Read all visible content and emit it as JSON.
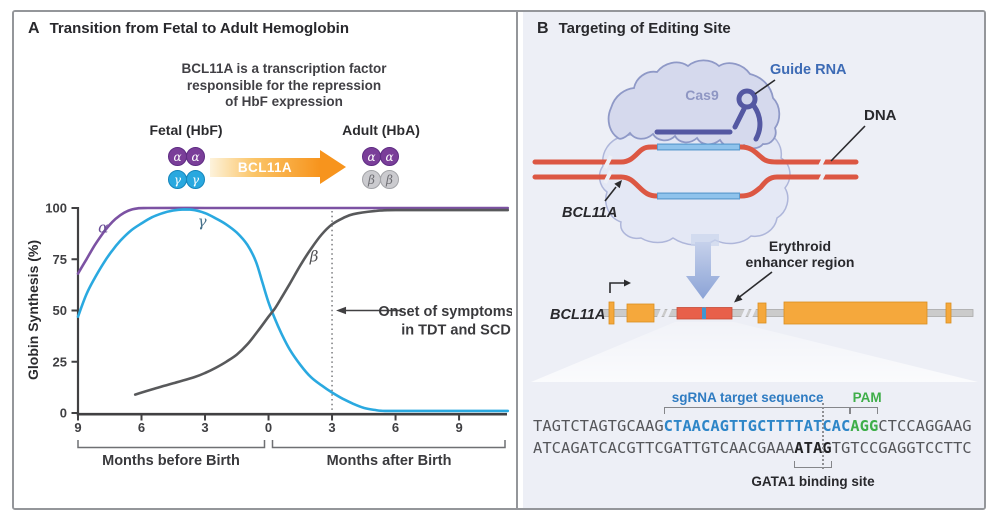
{
  "figure": {
    "panel_a": {
      "tag": "A",
      "title": "Transition from Fetal to Adult Hemoglobin",
      "note_lines": [
        "BCL11A is a transcription factor",
        "responsible for the repression",
        "of HbF expression"
      ],
      "fetal_label": "Fetal (HbF)",
      "adult_label": "Adult (HbA)",
      "arrow_label": "BCL11A",
      "fetal_top_letters": [
        "α",
        "α"
      ],
      "fetal_bottom_letters": [
        "γ",
        "γ"
      ],
      "adult_top_letters": [
        "α",
        "α"
      ],
      "adult_bottom_letters": [
        "β",
        "β"
      ]
    },
    "panel_b": {
      "tag": "B",
      "title": "Targeting of Editing Site",
      "labels": {
        "cas9": "Cas9",
        "guide_rna": "Guide RNA",
        "dna": "DNA",
        "bcl11a_dna": "BCL11A",
        "bcl11a_gene": "BCL11A",
        "erythroid_line1": "Erythroid",
        "erythroid_line2": "enhancer region"
      },
      "sequence": {
        "sgrna_label": "sgRNA target sequence",
        "pam_label": "PAM",
        "gata_label": "GATA1 binding site",
        "line1_pre": "TAGTCTAGTGCAAG",
        "line1_target": "CTAACAGTTGCTTTTATCAC",
        "line1_pam": "AGG",
        "line1_post": "CTCCAGGAAG",
        "line2_pre": "ATCAGATCACGTTCGATTGTCAACGAAA",
        "line2_gata": "ATAG",
        "line2_post": "TGTCCGAGGTCCTTC"
      }
    }
  },
  "chart_data": {
    "type": "line",
    "title": "",
    "xlabel_groups": [
      "Months before Birth",
      "Months after Birth"
    ],
    "ylabel": "Globin Synthesis (%)",
    "x_axis": {
      "tick_values": [
        -9,
        -6,
        -3,
        0,
        3,
        6,
        9
      ],
      "tick_labels": [
        "9",
        "6",
        "3",
        "0",
        "3",
        "6",
        "9"
      ],
      "range_months": [
        -9,
        11.3
      ]
    },
    "y_axis": {
      "ticks": [
        0,
        25,
        50,
        75,
        100
      ],
      "range": [
        0,
        100
      ]
    },
    "series": [
      {
        "name": "alpha-globin",
        "label": "α",
        "color": "#7C52A3",
        "label_color": "#6A4E97",
        "label_pos": {
          "month": -8.05,
          "pct": 88
        },
        "points": [
          [
            -9,
            68
          ],
          [
            -8.6,
            75
          ],
          [
            -8.2,
            82
          ],
          [
            -7.8,
            88
          ],
          [
            -7.4,
            93
          ],
          [
            -7,
            96.5
          ],
          [
            -6.6,
            98.8
          ],
          [
            -6.2,
            99.8
          ],
          [
            -5.7,
            100
          ],
          [
            -3,
            100
          ],
          [
            0,
            100
          ],
          [
            4,
            100
          ],
          [
            8,
            100
          ],
          [
            11.3,
            100
          ]
        ]
      },
      {
        "name": "gamma-globin",
        "label": "γ",
        "color": "#2AA9E0",
        "label_color": "#46708A",
        "label_pos": {
          "month": -3.35,
          "pct": 91
        },
        "points": [
          [
            -9,
            47
          ],
          [
            -8.6,
            58
          ],
          [
            -8.2,
            66
          ],
          [
            -7.8,
            73
          ],
          [
            -7.4,
            79
          ],
          [
            -7,
            84
          ],
          [
            -6.5,
            89
          ],
          [
            -6,
            92.5
          ],
          [
            -5.5,
            95.5
          ],
          [
            -5,
            97.5
          ],
          [
            -4.5,
            98.8
          ],
          [
            -4,
            99.3
          ],
          [
            -3.5,
            99
          ],
          [
            -3,
            97.5
          ],
          [
            -2.5,
            95
          ],
          [
            -2,
            92
          ],
          [
            -1.5,
            88
          ],
          [
            -1,
            82
          ],
          [
            -0.6,
            74
          ],
          [
            -0.3,
            64
          ],
          [
            0,
            54
          ],
          [
            0.3,
            46
          ],
          [
            0.6,
            39
          ],
          [
            1,
            31
          ],
          [
            1.5,
            23.5
          ],
          [
            2,
            17.5
          ],
          [
            2.5,
            13.5
          ],
          [
            3,
            10
          ],
          [
            3.5,
            7
          ],
          [
            4,
            4.5
          ],
          [
            4.5,
            2.5
          ],
          [
            5,
            1.5
          ],
          [
            5.5,
            1
          ],
          [
            7,
            1
          ],
          [
            9,
            1
          ],
          [
            11.3,
            1
          ]
        ]
      },
      {
        "name": "beta-globin",
        "label": "β",
        "color": "#58595B",
        "label_color": "#505053",
        "label_pos": {
          "month": 1.95,
          "pct": 74
        },
        "points": [
          [
            -6.3,
            9
          ],
          [
            -5.5,
            11.5
          ],
          [
            -4.5,
            14.5
          ],
          [
            -3.5,
            17.5
          ],
          [
            -3,
            19.5
          ],
          [
            -2.5,
            22
          ],
          [
            -2,
            25
          ],
          [
            -1.5,
            28.5
          ],
          [
            -1,
            33.5
          ],
          [
            -0.5,
            40
          ],
          [
            0,
            47
          ],
          [
            0.3,
            51
          ],
          [
            0.6,
            56
          ],
          [
            1,
            63
          ],
          [
            1.5,
            72
          ],
          [
            2,
            80
          ],
          [
            2.5,
            87
          ],
          [
            3,
            92
          ],
          [
            3.5,
            95
          ],
          [
            4,
            97
          ],
          [
            5,
            98.5
          ],
          [
            6,
            99
          ],
          [
            9,
            99
          ],
          [
            11.3,
            99
          ]
        ]
      }
    ],
    "annotation": {
      "text_line1": "Onset of symptoms",
      "text_line2": "in TDT and SCD",
      "at_month": 3,
      "at_pct": 50
    },
    "grid": false,
    "legend": "labels on curves"
  },
  "colors": {
    "frame_border": "#94969A",
    "panel_b_background": "#EDEFF6",
    "alpha_curve": "#7C52A3",
    "gamma_curve": "#2AA9E0",
    "beta_curve": "#58595B",
    "alpha_circle": "#7A3E99",
    "gamma_circle": "#29A8DF",
    "beta_circle": "#CBCBCF",
    "bcl11a_arrow_orange": "#F7941D",
    "dna_red": "#DC5743",
    "dna_target_blue": "#8FC3EC",
    "guide_rna_indigo": "#5458A2",
    "cas9_body": "#D5D9ED",
    "exon_orange": "#F5A83C",
    "enhancer_red": "#E8604A",
    "sequence_blue": "#2E86C8",
    "sequence_green": "#3FAE49"
  }
}
